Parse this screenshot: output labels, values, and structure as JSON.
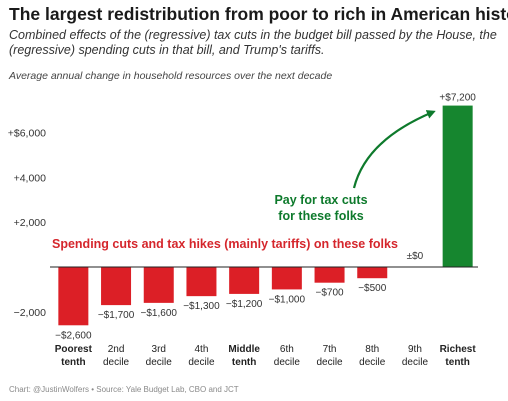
{
  "title": "The largest redistribution from poor to rich in American history",
  "subtitle": "Combined effects of the (regressive) tax cuts in the budget bill passed by the House, the (regressive) spending cuts in that bill, and Trump's tariffs.",
  "caption": "Average annual change in household resources over the next decade",
  "source": "Chart: @JustinWolfers • Source: Yale Budget Lab, CBO and JCT",
  "colors": {
    "negative": "#dc1f26",
    "positive": "#16862f",
    "annotation_red": "#d5262c",
    "annotation_green": "#0e7a2c"
  },
  "annotations": {
    "red": "Spending cuts and tax hikes (mainly tariffs) on these folks",
    "green_line1": "Pay for tax cuts",
    "green_line2": "for these folks"
  },
  "chart_data": {
    "type": "bar",
    "categories": [
      [
        "Poorest",
        "tenth"
      ],
      [
        "2nd",
        "decile"
      ],
      [
        "3rd",
        "decile"
      ],
      [
        "4th",
        "decile"
      ],
      [
        "Middle",
        "tenth"
      ],
      [
        "6th",
        "decile"
      ],
      [
        "7th",
        "decile"
      ],
      [
        "8th",
        "decile"
      ],
      [
        "9th",
        "decile"
      ],
      [
        "Richest",
        "tenth"
      ]
    ],
    "bold_categories": [
      0,
      4,
      9
    ],
    "values": [
      -2600,
      -1700,
      -1600,
      -1300,
      -1200,
      -1000,
      -700,
      -500,
      0,
      7200
    ],
    "value_labels": [
      "−$2,600",
      "−$1,700",
      "−$1,600",
      "−$1,300",
      "−$1,200",
      "−$1,000",
      "−$700",
      "−$500",
      "±$0",
      "+$7,200"
    ],
    "y_ticks": [
      -2000,
      2000,
      4000,
      6000
    ],
    "y_tick_labels": [
      "−2,000",
      "+2,000",
      "+4,000",
      "+$6,000"
    ],
    "ylim": [
      -3000,
      7400
    ],
    "baseline": true,
    "grid": false
  }
}
